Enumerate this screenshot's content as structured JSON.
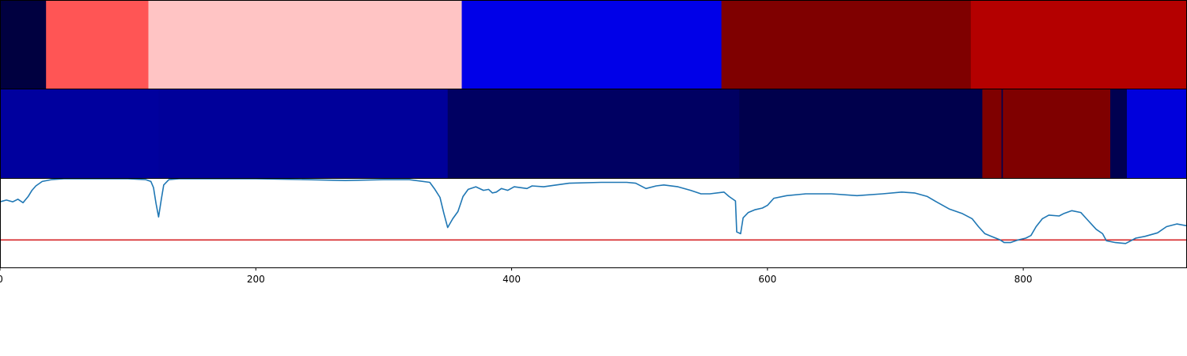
{
  "chart_data": [
    {
      "type": "heatmap",
      "panel": "top-strip",
      "segments": [
        {
          "x0": 0,
          "x1": 36,
          "color": "#000040"
        },
        {
          "x0": 36,
          "x1": 116,
          "color": "#ff5555"
        },
        {
          "x0": 116,
          "x1": 361,
          "color": "#ffc4c4"
        },
        {
          "x0": 361,
          "x1": 564,
          "color": "#0000e8"
        },
        {
          "x0": 564,
          "x1": 759,
          "color": "#7f0000"
        },
        {
          "x0": 759,
          "x1": 928,
          "color": "#b40000"
        }
      ]
    },
    {
      "type": "heatmap",
      "panel": "middle-strip",
      "segments": [
        {
          "x0": 0,
          "x1": 124,
          "color": "#00009e"
        },
        {
          "x0": 124,
          "x1": 350,
          "color": "#00009a"
        },
        {
          "x0": 350,
          "x1": 578,
          "color": "#000062"
        },
        {
          "x0": 578,
          "x1": 768,
          "color": "#00004c"
        },
        {
          "x0": 768,
          "x1": 783,
          "color": "#7f0000"
        },
        {
          "x0": 783,
          "x1": 784,
          "color": "#000050"
        },
        {
          "x0": 784,
          "x1": 868,
          "color": "#7f0000"
        },
        {
          "x0": 868,
          "x1": 881,
          "color": "#000050"
        },
        {
          "x0": 881,
          "x1": 928,
          "color": "#0000dc"
        }
      ]
    },
    {
      "type": "line",
      "panel": "bottom-signal",
      "xlim": [
        0,
        928
      ],
      "ylim": [
        0,
        1
      ],
      "xticks": [
        0,
        200,
        400,
        600,
        800
      ],
      "line_color": "#1f77b4",
      "threshold": {
        "y": 0.31,
        "color": "#d62728"
      },
      "series": [
        {
          "points": [
            [
              0,
              0.74
            ],
            [
              5,
              0.76
            ],
            [
              10,
              0.74
            ],
            [
              14,
              0.77
            ],
            [
              18,
              0.73
            ],
            [
              22,
              0.8
            ],
            [
              25,
              0.87
            ],
            [
              28,
              0.92
            ],
            [
              33,
              0.97
            ],
            [
              40,
              0.99
            ],
            [
              50,
              1.0
            ],
            [
              80,
              1.0
            ],
            [
              100,
              1.0
            ],
            [
              114,
              0.99
            ],
            [
              118,
              0.97
            ],
            [
              120,
              0.9
            ],
            [
              122,
              0.72
            ],
            [
              124,
              0.57
            ],
            [
              126,
              0.76
            ],
            [
              128,
              0.93
            ],
            [
              132,
              0.99
            ],
            [
              140,
              1.0
            ],
            [
              200,
              1.0
            ],
            [
              240,
              0.99
            ],
            [
              270,
              0.98
            ],
            [
              300,
              0.99
            ],
            [
              320,
              0.99
            ],
            [
              336,
              0.96
            ],
            [
              340,
              0.88
            ],
            [
              344,
              0.79
            ],
            [
              347,
              0.61
            ],
            [
              350,
              0.45
            ],
            [
              354,
              0.55
            ],
            [
              358,
              0.63
            ],
            [
              362,
              0.8
            ],
            [
              366,
              0.88
            ],
            [
              372,
              0.91
            ],
            [
              378,
              0.87
            ],
            [
              382,
              0.88
            ],
            [
              385,
              0.84
            ],
            [
              388,
              0.85
            ],
            [
              392,
              0.89
            ],
            [
              397,
              0.87
            ],
            [
              402,
              0.91
            ],
            [
              407,
              0.9
            ],
            [
              412,
              0.89
            ],
            [
              416,
              0.92
            ],
            [
              425,
              0.91
            ],
            [
              435,
              0.93
            ],
            [
              445,
              0.95
            ],
            [
              470,
              0.96
            ],
            [
              490,
              0.96
            ],
            [
              497,
              0.95
            ],
            [
              505,
              0.89
            ],
            [
              513,
              0.92
            ],
            [
              519,
              0.93
            ],
            [
              530,
              0.91
            ],
            [
              540,
              0.87
            ],
            [
              548,
              0.83
            ],
            [
              555,
              0.83
            ],
            [
              566,
              0.85
            ],
            [
              570,
              0.8
            ],
            [
              575,
              0.75
            ],
            [
              576,
              0.4
            ],
            [
              579,
              0.38
            ],
            [
              581,
              0.56
            ],
            [
              585,
              0.62
            ],
            [
              590,
              0.65
            ],
            [
              596,
              0.67
            ],
            [
              600,
              0.7
            ],
            [
              605,
              0.78
            ],
            [
              615,
              0.81
            ],
            [
              630,
              0.83
            ],
            [
              650,
              0.83
            ],
            [
              670,
              0.81
            ],
            [
              690,
              0.83
            ],
            [
              705,
              0.85
            ],
            [
              715,
              0.84
            ],
            [
              725,
              0.8
            ],
            [
              732,
              0.74
            ],
            [
              742,
              0.66
            ],
            [
              752,
              0.61
            ],
            [
              760,
              0.55
            ],
            [
              765,
              0.46
            ],
            [
              770,
              0.38
            ],
            [
              775,
              0.35
            ],
            [
              782,
              0.31
            ],
            [
              785,
              0.28
            ],
            [
              790,
              0.28
            ],
            [
              796,
              0.31
            ],
            [
              802,
              0.33
            ],
            [
              806,
              0.36
            ],
            [
              810,
              0.46
            ],
            [
              815,
              0.55
            ],
            [
              820,
              0.59
            ],
            [
              828,
              0.58
            ],
            [
              832,
              0.61
            ],
            [
              838,
              0.64
            ],
            [
              845,
              0.62
            ],
            [
              850,
              0.54
            ],
            [
              857,
              0.43
            ],
            [
              862,
              0.38
            ],
            [
              865,
              0.3
            ],
            [
              872,
              0.28
            ],
            [
              880,
              0.27
            ],
            [
              888,
              0.33
            ],
            [
              895,
              0.35
            ],
            [
              905,
              0.39
            ],
            [
              912,
              0.46
            ],
            [
              920,
              0.49
            ],
            [
              928,
              0.47
            ]
          ]
        }
      ]
    }
  ]
}
